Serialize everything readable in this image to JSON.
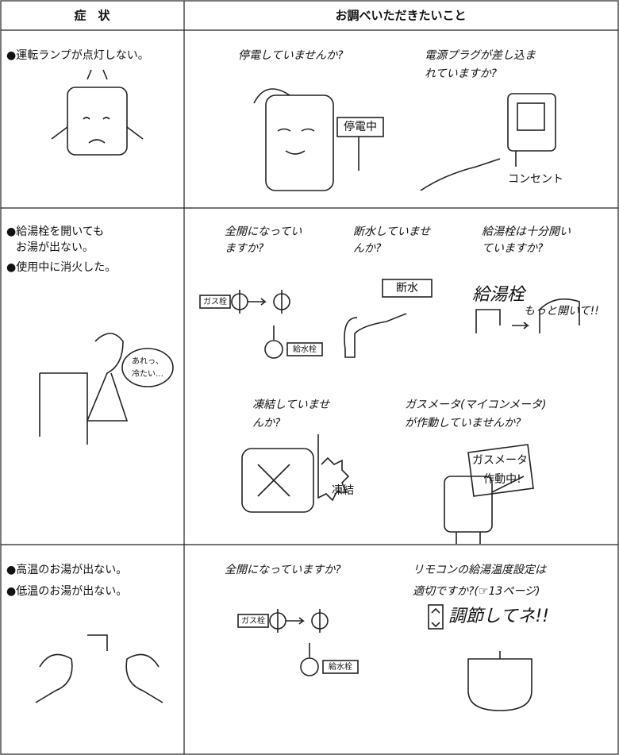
{
  "header": {
    "symptom": "症　状",
    "check": "お調べいただきたいこと"
  },
  "rows": [
    {
      "symptoms": [
        [
          "●運転ランプが点灯しない。"
        ]
      ],
      "checks": [
        {
          "lines": [
            "停電していませんか?"
          ]
        },
        {
          "lines": [
            "電源プラグが差し込ま",
            "れていますか?"
          ]
        }
      ],
      "labels": [
        "停電中",
        "コンセント"
      ]
    },
    {
      "symptoms": [
        [
          "●給湯栓を開いても",
          "お湯が出ない。"
        ],
        [
          "●使用中に消火した。"
        ]
      ],
      "checks": [
        {
          "lines": [
            "全開になってい",
            "ますか?"
          ]
        },
        {
          "lines": [
            "断水していませ",
            "んか?"
          ]
        },
        {
          "lines": [
            "給湯栓は十分開い",
            "ていますか?"
          ]
        },
        {
          "lines": [
            "凍結していませ",
            "んか?"
          ]
        },
        {
          "lines": [
            "ガスメータ(マイコンメータ)",
            "が作動していませんか?"
          ]
        }
      ],
      "labels": [
        "ガス栓",
        "給水栓",
        "断水",
        "給湯栓",
        "もっと開いて!!",
        "あれっ、",
        "冷たい…",
        "凍結",
        "ガスメータ",
        "作動中!"
      ]
    },
    {
      "symptoms": [
        [
          "●高温のお湯が出ない。"
        ],
        [
          "●低温のお湯が出ない。"
        ]
      ],
      "checks": [
        {
          "lines": [
            "全開になっていますか?"
          ]
        },
        {
          "lines": [
            "リモコンの給湯温度設定は",
            "適切ですか?(☞13ページ)"
          ]
        }
      ],
      "labels": [
        "ガス栓",
        "給水栓",
        "調節してネ!!"
      ]
    }
  ]
}
